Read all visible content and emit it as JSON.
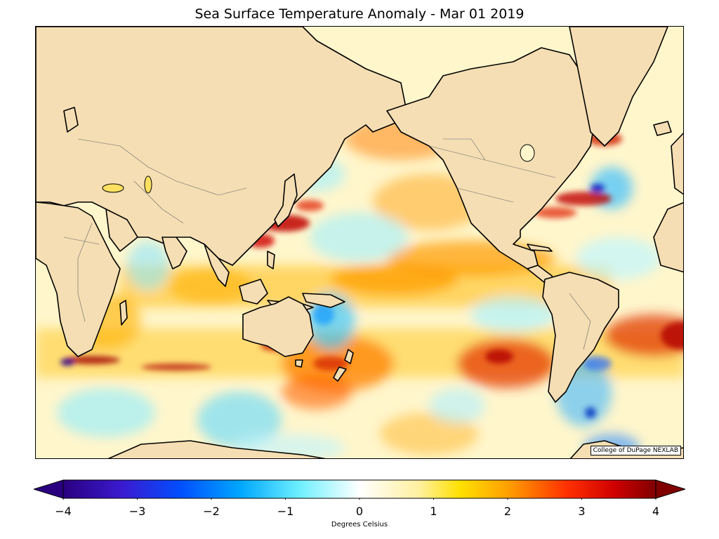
{
  "title": "Sea Surface Temperature Anomaly - Mar 01 2019",
  "credit": "College of DuPage NEXLAB",
  "colorbar": {
    "label": "Degrees Celsius",
    "min": -4,
    "max": 4,
    "ticks": [
      "−4",
      "−3",
      "−2",
      "−1",
      "0",
      "1",
      "2",
      "3",
      "4"
    ],
    "extend": "both",
    "colors": [
      "#2a0080",
      "#3a1ad0",
      "#0050ff",
      "#00a0ff",
      "#60e8ff",
      "#ffffff",
      "#fff0a0",
      "#ffe000",
      "#ffa000",
      "#ff4000",
      "#d00000",
      "#800000"
    ]
  },
  "map": {
    "land_color": "#f5deb3",
    "projection": "Miller cylindrical, centered on 180"
  }
}
